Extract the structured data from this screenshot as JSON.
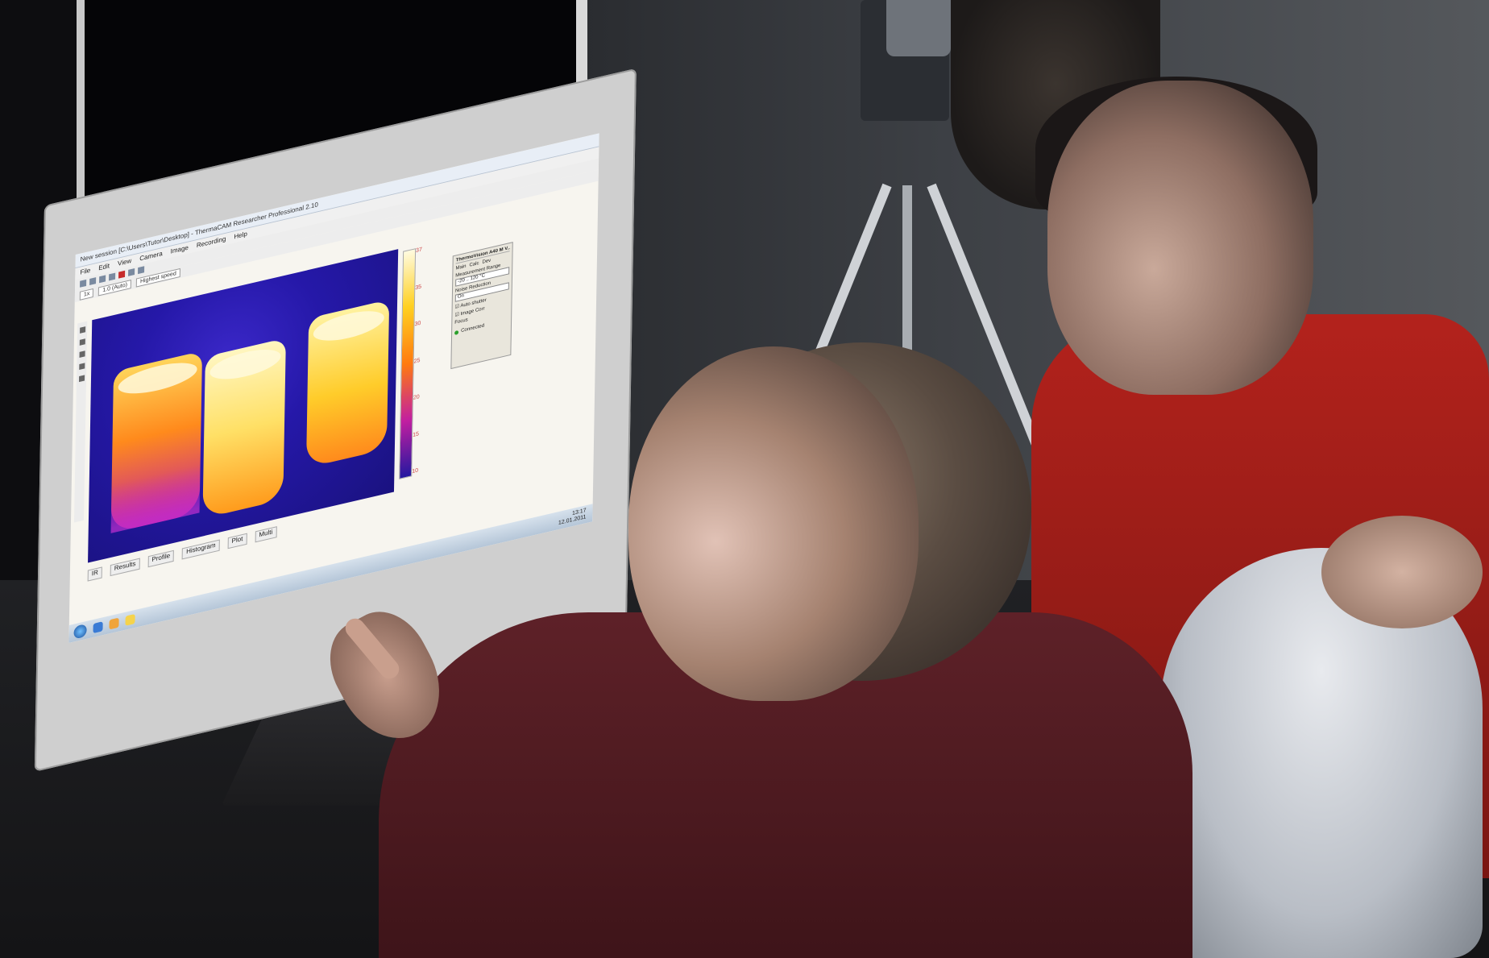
{
  "app": {
    "window_title": "New session [C:\\Users\\Tutor\\Desktop] - ThermaCAM Researcher Professional 2.10",
    "menu": [
      "File",
      "Edit",
      "View",
      "Camera",
      "Image",
      "Recording",
      "Help"
    ]
  },
  "toolbar": {
    "zoom_value": "1x",
    "frame_rate": "1.0 (Auto)",
    "speed": "Highest speed"
  },
  "colors": {
    "thermal_cold": "#2418a0",
    "thermal_hot": "#fffbe0",
    "accent_red": "#c62b2b"
  },
  "scale_labels": [
    "37",
    "35",
    "30",
    "25",
    "20",
    "15",
    "10"
  ],
  "panel": {
    "title": "ThermoVision A40 M V...",
    "tabs": [
      "Main",
      "Calc",
      "Dev"
    ],
    "measurement_range_label": "Measurement Range",
    "measurement_range_value": "-20 .. 120 °C",
    "noise_reduction_label": "Noise Reduction",
    "noise_reduction_value": "On",
    "auto_shutter_label": "Auto shutter",
    "image_corr_label": "Image Corr",
    "focus_label": "Focus",
    "status": "Connected"
  },
  "bottom_tabs": [
    "IR",
    "Results",
    "Profile",
    "Histogram",
    "Plot",
    "Multi"
  ],
  "taskbar": {
    "time": "13:17",
    "date": "12.01.2011"
  }
}
